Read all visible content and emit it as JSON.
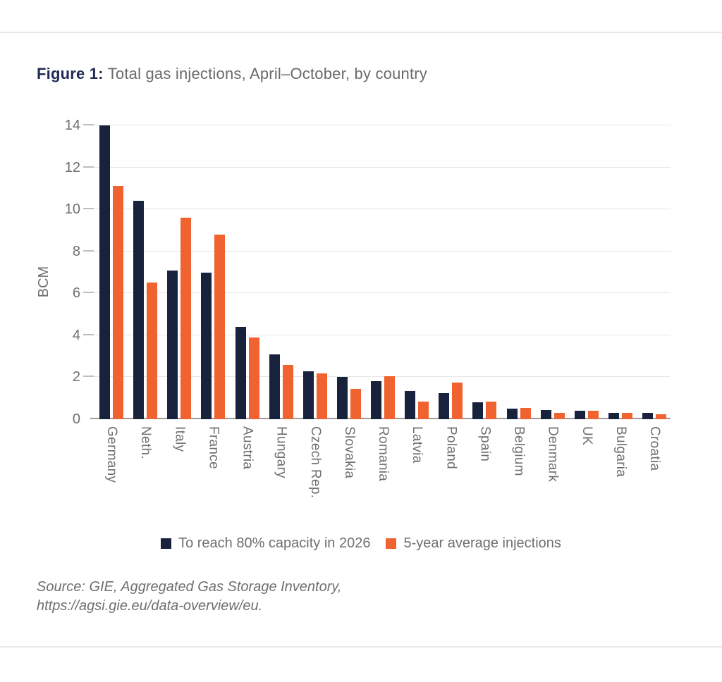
{
  "header": {
    "figure_label": "Figure 1:",
    "title": "Total gas injections, April–October, by country"
  },
  "chart_data": {
    "type": "bar",
    "categories": [
      "Germany",
      "Neth.",
      "Italy",
      "France",
      "Austria",
      "Hungary",
      "Czech Rep.",
      "Slovakia",
      "Romania",
      "Latvia",
      "Poland",
      "Spain",
      "Belgium",
      "Denmark",
      "UK",
      "Bulgaria",
      "Croatia"
    ],
    "series": [
      {
        "name": "To reach 80% capacity in 2026",
        "color": "#18223c",
        "values": [
          14.0,
          10.4,
          7.1,
          7.0,
          4.4,
          3.1,
          2.3,
          2.0,
          1.8,
          1.35,
          1.25,
          0.8,
          0.5,
          0.45,
          0.4,
          0.3,
          0.3
        ]
      },
      {
        "name": "5-year average injections",
        "color": "#f0622f",
        "values": [
          11.1,
          6.5,
          9.6,
          8.8,
          3.9,
          2.6,
          2.2,
          1.45,
          2.05,
          0.85,
          1.75,
          0.85,
          0.55,
          0.3,
          0.4,
          0.3,
          0.25
        ]
      }
    ],
    "xlabel": "",
    "ylabel": "BCM",
    "yticks": [
      0,
      2,
      4,
      6,
      8,
      10,
      12,
      14
    ],
    "ylim": [
      0,
      14
    ],
    "grid": true,
    "legend_position": "bottom"
  },
  "source": {
    "line1": "Source: GIE, Aggregated Gas Storage Inventory,",
    "line2": "https://agsi.gie.eu/data-overview/eu."
  },
  "colors": {
    "series_navy": "#18223c",
    "series_orange": "#f0622f",
    "figure_label_navy": "#222c56",
    "text_gray": "#6f6f6f",
    "gridline": "#e5e5e5",
    "baseline": "#9b9b9b",
    "rule": "#e8e8e8"
  }
}
